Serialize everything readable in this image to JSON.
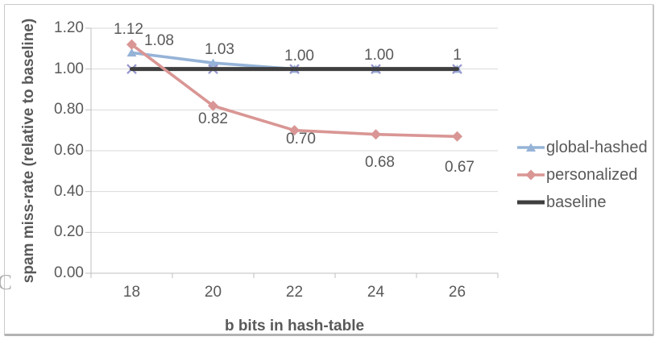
{
  "figure_label": "C",
  "colors": {
    "grid": "#d9d9d9",
    "axis": "#bfbfbf",
    "text": "#595959",
    "frame_border": "#c9c9c9",
    "figure_label": "#b0b0b0",
    "background": "#ffffff"
  },
  "chart_data": {
    "type": "line",
    "title": "",
    "xlabel": "b bits in hash-table",
    "ylabel": "spam miss-rate (relative to baseline)",
    "x": [
      18,
      20,
      22,
      24,
      26
    ],
    "xtick_labels": [
      "18",
      "20",
      "22",
      "24",
      "26"
    ],
    "ylim": [
      0,
      1.2
    ],
    "ytick_step": 0.2,
    "ytick_labels": [
      "0.00",
      "0.20",
      "0.40",
      "0.60",
      "0.80",
      "1.00",
      "1.20"
    ],
    "grid": true,
    "legend_position": "right",
    "series": [
      {
        "name": "global-hashed",
        "color": "#95b3d7",
        "marker": "triangle",
        "line_width": 3.6,
        "values": [
          1.08,
          1.03,
          1.0,
          1.0,
          1.0
        ],
        "point_labels": [
          {
            "text": "1.08",
            "dx": 34,
            "dy": -14
          },
          {
            "text": "1.03",
            "dx": 8,
            "dy": -16
          },
          {
            "text": "1.00",
            "dx": 6,
            "dy": -16
          },
          {
            "text": "1.00",
            "dx": 4,
            "dy": -17
          },
          {
            "text": "1",
            "dx": 0,
            "dy": -17
          }
        ]
      },
      {
        "name": "personalized",
        "color": "#d99694",
        "marker": "diamond",
        "line_width": 3.6,
        "values": [
          1.12,
          0.82,
          0.7,
          0.68,
          0.67
        ],
        "point_labels": [
          {
            "text": "1.12",
            "dx": -4,
            "dy": -18
          },
          {
            "text": "0.82",
            "dx": 0,
            "dy": 17
          },
          {
            "text": "0.70",
            "dx": 8,
            "dy": 11
          },
          {
            "text": "0.68",
            "dx": 5,
            "dy": 35
          },
          {
            "text": "0.67",
            "dx": 3,
            "dy": 39
          }
        ]
      },
      {
        "name": "baseline",
        "color": "#3f3f3f",
        "marker": "x",
        "marker_color": "#9a9ad0",
        "line_width": 5,
        "values": [
          1.0,
          1.0,
          1.0,
          1.0,
          1.0
        ],
        "point_labels": []
      }
    ]
  }
}
